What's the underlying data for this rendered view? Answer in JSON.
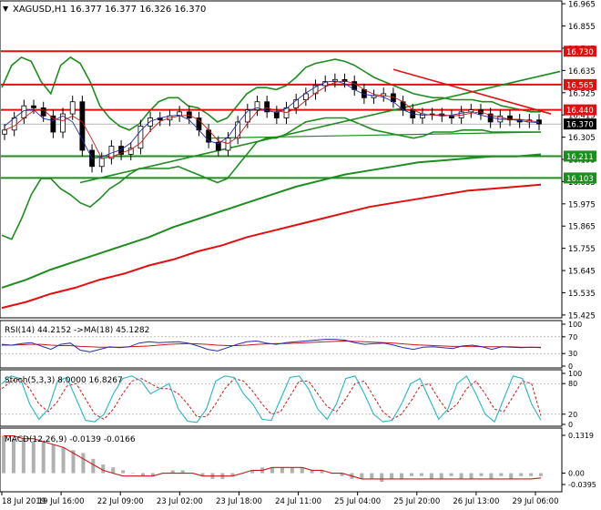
{
  "header": {
    "symbol_line": "XAGUSD,H1  16.377 16.377 16.326 16.370"
  },
  "colors": {
    "level_red": "#e01010",
    "level_green": "#1e8c1e",
    "price_label_bg": "#000000",
    "rsi_line": "#2a2aa8",
    "rsi_ma": "#cc1818",
    "stoch_main": "#2ab4c8",
    "stoch_signal": "#cc1818",
    "macd_hist": "#b0b0b0",
    "macd_signal": "#cc1818",
    "candles": "#000000",
    "bollinger": "#1e8c1e",
    "ma_red": "#e01010",
    "ma_green": "#1e8c1e"
  },
  "chart_data": {
    "type": "line",
    "price_axis": {
      "ticks": [
        "16.965",
        "16.855",
        "16.745",
        "16.635",
        "16.525",
        "16.415",
        "16.305",
        "16.195",
        "16.085",
        "15.975",
        "15.865",
        "15.755",
        "15.645",
        "15.535",
        "15.425"
      ],
      "ylim": [
        15.42,
        16.97
      ]
    },
    "levels": [
      {
        "label": "16.730",
        "value": 16.73,
        "color": "red"
      },
      {
        "label": "16.565",
        "value": 16.565,
        "color": "red"
      },
      {
        "label": "16.440",
        "value": 16.44,
        "color": "red"
      },
      {
        "label": "16.211",
        "value": 16.211,
        "color": "green"
      },
      {
        "label": "16.103",
        "value": 16.103,
        "color": "green"
      }
    ],
    "current_price": {
      "label": "16.370",
      "value": 16.37
    },
    "time_axis": [
      "18 Jul 2019",
      "19 Jul 16:00",
      "22 Jul 09:00",
      "23 Jul 02:00",
      "23 Jul 18:00",
      "24 Jul 11:00",
      "25 Jul 04:00",
      "25 Jul 20:00",
      "26 Jul 13:00",
      "29 Jul 06:00"
    ],
    "close_series": [
      16.34,
      16.4,
      16.46,
      16.45,
      16.41,
      16.33,
      16.42,
      16.48,
      16.24,
      16.16,
      16.2,
      16.26,
      16.22,
      16.25,
      16.36,
      16.4,
      16.39,
      16.41,
      16.43,
      16.4,
      16.34,
      16.28,
      16.24,
      16.3,
      16.38,
      16.44,
      16.48,
      16.43,
      16.4,
      16.45,
      16.49,
      16.52,
      16.56,
      16.58,
      16.59,
      16.58,
      16.54,
      16.5,
      16.51,
      16.52,
      16.48,
      16.44,
      16.4,
      16.42,
      16.42,
      16.41,
      16.4,
      16.43,
      16.44,
      16.42,
      16.38,
      16.41,
      16.39,
      16.38,
      16.39,
      16.37
    ],
    "bollinger": {
      "upper": [
        16.55,
        16.66,
        16.7,
        16.68,
        16.58,
        16.52,
        16.66,
        16.7,
        16.67,
        16.58,
        16.46,
        16.4,
        16.36,
        16.34,
        16.37,
        16.43,
        16.48,
        16.5,
        16.5,
        16.46,
        16.45,
        16.42,
        16.38,
        16.4,
        16.46,
        16.52,
        16.55,
        16.55,
        16.54,
        16.56,
        16.6,
        16.65,
        16.67,
        16.68,
        16.69,
        16.68,
        16.66,
        16.63,
        16.6,
        16.58,
        16.56,
        16.54,
        16.52,
        16.51,
        16.5,
        16.5,
        16.49,
        16.49,
        16.49,
        16.48,
        16.48,
        16.46,
        16.45,
        16.44,
        16.43,
        16.43
      ],
      "lower": [
        15.82,
        15.8,
        15.9,
        16.02,
        16.1,
        16.1,
        16.05,
        16.02,
        15.98,
        15.96,
        16.0,
        16.05,
        16.08,
        16.12,
        16.15,
        16.15,
        16.15,
        16.15,
        16.16,
        16.14,
        16.12,
        16.1,
        16.08,
        16.1,
        16.16,
        16.22,
        16.28,
        16.3,
        16.3,
        16.32,
        16.35,
        16.38,
        16.39,
        16.4,
        16.4,
        16.4,
        16.38,
        16.36,
        16.34,
        16.33,
        16.32,
        16.31,
        16.3,
        16.31,
        16.33,
        16.33,
        16.33,
        16.34,
        16.34,
        16.34,
        16.33,
        16.33,
        16.33,
        16.33,
        16.33,
        16.33
      ]
    },
    "ma_red_series": [
      15.46,
      15.49,
      15.53,
      15.56,
      15.6,
      15.63,
      15.67,
      15.7,
      15.74,
      15.77,
      15.81,
      15.84,
      15.87,
      15.9,
      15.93,
      15.96,
      15.98,
      16.0,
      16.02,
      16.04,
      16.05,
      16.06,
      16.07
    ],
    "ma_green_series": [
      15.56,
      15.6,
      15.65,
      15.69,
      15.73,
      15.77,
      15.81,
      15.86,
      15.9,
      15.94,
      15.98,
      16.02,
      16.06,
      16.09,
      16.12,
      16.14,
      16.16,
      16.18,
      16.19,
      16.2,
      16.21,
      16.21,
      16.22
    ]
  },
  "rsi": {
    "header": "RSI(14) 44.2152  ->MA(18) 45.1282",
    "ticks": [
      "100",
      "70",
      "30",
      "0"
    ],
    "values": [
      52,
      50,
      54,
      56,
      48,
      40,
      52,
      55,
      38,
      34,
      40,
      46,
      44,
      46,
      55,
      58,
      56,
      57,
      58,
      55,
      48,
      40,
      36,
      44,
      52,
      58,
      60,
      55,
      52,
      56,
      58,
      60,
      62,
      64,
      64,
      62,
      56,
      52,
      54,
      55,
      50,
      44,
      40,
      45,
      46,
      44,
      42,
      48,
      50,
      46,
      40,
      46,
      45,
      44,
      45,
      44
    ],
    "ma_values": [
      50,
      50,
      51,
      52,
      52,
      50,
      49,
      49,
      47,
      46,
      45,
      45,
      45,
      46,
      47,
      48,
      50,
      52,
      53,
      54,
      53,
      52,
      50,
      49,
      49,
      50,
      52,
      53,
      54,
      54,
      55,
      56,
      57,
      58,
      59,
      60,
      59,
      58,
      57,
      56,
      55,
      53,
      51,
      50,
      49,
      48,
      47,
      47,
      47,
      46,
      46,
      46,
      46,
      45,
      45,
      45
    ]
  },
  "stochastic": {
    "header": "Stoch(5,3,3) 8.0000 16.8267",
    "ticks": [
      "100",
      "80",
      "20",
      "0"
    ],
    "main": [
      80,
      95,
      90,
      40,
      10,
      30,
      85,
      92,
      50,
      8,
      5,
      20,
      60,
      90,
      95,
      85,
      60,
      70,
      80,
      30,
      6,
      4,
      30,
      85,
      95,
      92,
      60,
      40,
      10,
      8,
      50,
      92,
      95,
      70,
      30,
      10,
      40,
      90,
      95,
      60,
      20,
      5,
      8,
      40,
      80,
      90,
      50,
      10,
      30,
      80,
      95,
      60,
      20,
      5,
      50,
      95,
      90,
      40,
      8
    ],
    "signal": [
      70,
      85,
      90,
      70,
      40,
      25,
      45,
      75,
      80,
      50,
      20,
      10,
      30,
      60,
      85,
      90,
      80,
      70,
      70,
      60,
      40,
      15,
      15,
      40,
      70,
      90,
      85,
      65,
      40,
      20,
      25,
      55,
      85,
      85,
      60,
      35,
      25,
      50,
      80,
      85,
      55,
      25,
      10,
      20,
      45,
      75,
      80,
      50,
      25,
      40,
      70,
      85,
      60,
      30,
      25,
      55,
      85,
      80,
      17
    ]
  },
  "macd": {
    "header": "MACD(12,26,9) -0.0139 -0.0166",
    "ticks": [
      "0.1319",
      "0.00",
      "-0.0395"
    ],
    "hist": [
      0.13,
      0.12,
      0.12,
      0.11,
      0.11,
      0.1,
      0.09,
      0.08,
      0.07,
      0.05,
      0.03,
      0.02,
      0.01,
      0.0,
      -0.01,
      -0.01,
      0.0,
      0.01,
      0.01,
      0.0,
      -0.01,
      -0.02,
      -0.02,
      -0.01,
      0.0,
      0.01,
      0.02,
      0.02,
      0.02,
      0.02,
      0.02,
      0.01,
      0.01,
      0.0,
      -0.01,
      -0.02,
      -0.02,
      -0.02,
      -0.03,
      -0.02,
      -0.02,
      -0.01,
      -0.01,
      -0.02,
      -0.02,
      -0.01,
      -0.02,
      -0.02,
      -0.01,
      -0.02,
      -0.01,
      -0.02,
      -0.01,
      -0.01,
      -0.01
    ],
    "signal": [
      0.13,
      0.13,
      0.12,
      0.12,
      0.11,
      0.1,
      0.09,
      0.07,
      0.05,
      0.03,
      0.01,
      0.0,
      -0.01,
      -0.01,
      -0.01,
      -0.01,
      0.0,
      0.0,
      0.0,
      0.0,
      -0.01,
      -0.01,
      -0.01,
      -0.01,
      0.0,
      0.01,
      0.01,
      0.02,
      0.02,
      0.02,
      0.02,
      0.01,
      0.01,
      0.0,
      0.0,
      -0.01,
      -0.02,
      -0.02,
      -0.02,
      -0.02,
      -0.02,
      -0.02,
      -0.02,
      -0.02,
      -0.02,
      -0.02,
      -0.02,
      -0.02,
      -0.02,
      -0.02,
      -0.02,
      -0.02,
      -0.02,
      -0.02,
      -0.0166
    ]
  }
}
